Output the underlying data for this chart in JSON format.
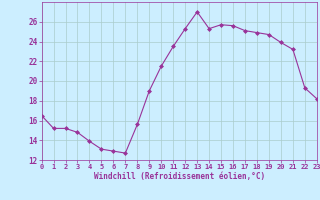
{
  "x": [
    0,
    1,
    2,
    3,
    4,
    5,
    6,
    7,
    8,
    9,
    10,
    11,
    12,
    13,
    14,
    15,
    16,
    17,
    18,
    19,
    20,
    21,
    22,
    23
  ],
  "y": [
    16.5,
    15.2,
    15.2,
    14.8,
    13.9,
    13.1,
    12.9,
    12.7,
    15.6,
    19.0,
    21.5,
    23.5,
    25.3,
    27.0,
    25.3,
    25.7,
    25.6,
    25.1,
    24.9,
    24.7,
    23.9,
    23.2,
    19.3,
    18.2
  ],
  "line_color": "#993399",
  "marker_color": "#993399",
  "bg_color": "#cceeff",
  "grid_color": "#aacccc",
  "xlabel": "Windchill (Refroidissement éolien,°C)",
  "xlabel_color": "#993399",
  "tick_color": "#993399",
  "ylim": [
    12,
    28
  ],
  "yticks": [
    12,
    14,
    16,
    18,
    20,
    22,
    24,
    26
  ],
  "xlim": [
    0,
    23
  ],
  "figsize": [
    3.2,
    2.0
  ],
  "dpi": 100
}
